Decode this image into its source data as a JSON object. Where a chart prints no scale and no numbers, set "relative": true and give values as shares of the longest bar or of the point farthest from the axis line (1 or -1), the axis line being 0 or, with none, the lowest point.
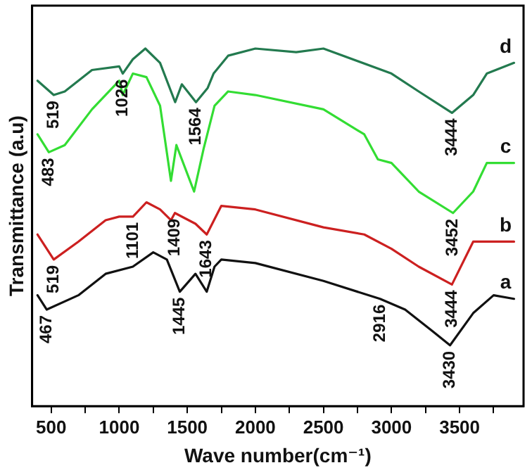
{
  "chart_data": {
    "type": "line",
    "relative": true,
    "xlabel": "Wave number(cm⁻¹)",
    "ylabel": "Transmittance (a.u)",
    "xlim": [
      360,
      3970
    ],
    "xticks": [
      500,
      {
        "value": 750,
        "label": null
      },
      1000,
      {
        "value": 1250,
        "label": null
      },
      1500,
      {
        "value": 1750,
        "label": null
      },
      2000,
      {
        "value": 2250,
        "label": null
      },
      2500,
      {
        "value": 2750,
        "label": null
      },
      3000,
      {
        "value": 3250,
        "label": null
      },
      3500,
      {
        "value": 3750,
        "label": null
      }
    ],
    "grid": false,
    "legend": false,
    "marker": "none",
    "line_style": "solid",
    "series": [
      {
        "name": "a",
        "color": "#111111",
        "x": [
          400,
          467,
          700,
          900,
          1100,
          1250,
          1350,
          1445,
          1560,
          1643,
          1700,
          1750,
          2000,
          2500,
          2916,
          3100,
          3300,
          3430,
          3600,
          3750,
          3900
        ],
        "values": [
          0.31,
          0.27,
          0.31,
          0.37,
          0.39,
          0.43,
          0.41,
          0.32,
          0.37,
          0.32,
          0.39,
          0.41,
          0.4,
          0.35,
          0.3,
          0.27,
          0.21,
          0.17,
          0.26,
          0.31,
          0.3
        ]
      },
      {
        "name": "b",
        "color": "#cc2020",
        "x": [
          400,
          519,
          700,
          900,
          1000,
          1101,
          1200,
          1300,
          1380,
          1409,
          1560,
          1643,
          1750,
          2000,
          2500,
          2800,
          3000,
          3200,
          3444,
          3600,
          3900
        ],
        "values": [
          0.48,
          0.41,
          0.46,
          0.52,
          0.53,
          0.53,
          0.57,
          0.55,
          0.52,
          0.54,
          0.51,
          0.48,
          0.56,
          0.55,
          0.5,
          0.48,
          0.44,
          0.39,
          0.34,
          0.46,
          0.46
        ]
      },
      {
        "name": "c",
        "color": "#33dd33",
        "x": [
          400,
          483,
          600,
          800,
          1000,
          1026,
          1100,
          1200,
          1300,
          1380,
          1420,
          1550,
          1620,
          1700,
          1800,
          2000,
          2500,
          2800,
          2900,
          3000,
          3200,
          3452,
          3600,
          3700,
          3900
        ],
        "values": [
          0.76,
          0.71,
          0.73,
          0.83,
          0.91,
          0.87,
          0.93,
          0.92,
          0.84,
          0.63,
          0.73,
          0.6,
          0.72,
          0.84,
          0.88,
          0.87,
          0.83,
          0.76,
          0.69,
          0.68,
          0.6,
          0.54,
          0.6,
          0.68,
          0.68
        ]
      },
      {
        "name": "d",
        "color": "#237a4f",
        "x": [
          400,
          519,
          600,
          800,
          1000,
          1026,
          1100,
          1192,
          1300,
          1411,
          1460,
          1564,
          1650,
          1693,
          1800,
          2000,
          2300,
          2500,
          3000,
          3200,
          3444,
          3600,
          3700,
          3900
        ],
        "values": [
          0.91,
          0.87,
          0.88,
          0.94,
          0.95,
          0.93,
          0.97,
          1.0,
          0.96,
          0.85,
          0.9,
          0.85,
          0.89,
          0.93,
          0.98,
          1.0,
          0.99,
          1.0,
          0.93,
          0.88,
          0.82,
          0.87,
          0.93,
          0.96
        ]
      }
    ],
    "annotations": [
      {
        "text": "519",
        "x": 519,
        "y": 0.87
      },
      {
        "text": "1026",
        "x": 1026,
        "y": 0.93
      },
      {
        "text": "1564",
        "x": 1564,
        "y": 0.85
      },
      {
        "text": "3444",
        "x": 3444,
        "y": 0.82
      },
      {
        "text": "483",
        "x": 483,
        "y": 0.71
      },
      {
        "text": "3452",
        "x": 3452,
        "y": 0.54
      },
      {
        "text": "519",
        "x": 519,
        "y": 0.41
      },
      {
        "text": "1101",
        "x": 1101,
        "y": 0.53
      },
      {
        "text": "1409",
        "x": 1409,
        "y": 0.54
      },
      {
        "text": "1643",
        "x": 1643,
        "y": 0.48
      },
      {
        "text": "467",
        "x": 467,
        "y": 0.27
      },
      {
        "text": "1445",
        "x": 1445,
        "y": 0.32
      },
      {
        "text": "2916",
        "x": 2916,
        "y": 0.3
      },
      {
        "text": "3444",
        "x": 3444,
        "y": 0.34
      },
      {
        "text": "3430",
        "x": 3430,
        "y": 0.17
      }
    ]
  }
}
